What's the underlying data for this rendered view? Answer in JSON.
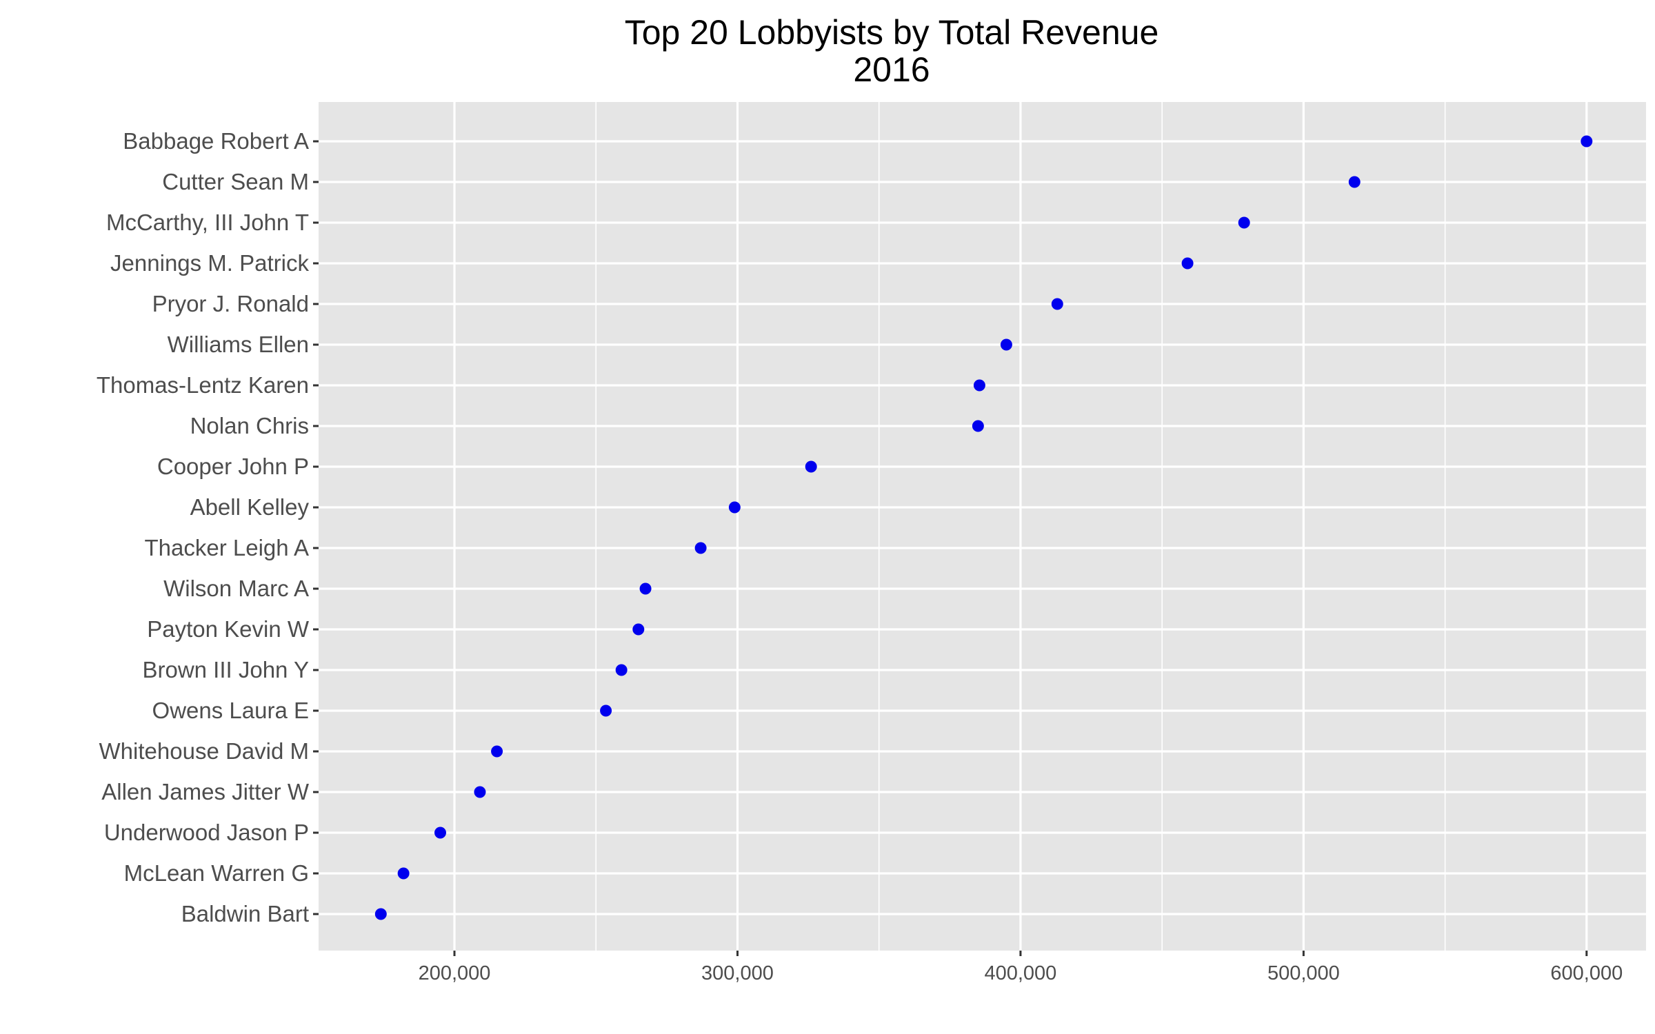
{
  "chart_data": {
    "type": "scatter",
    "title": "Top 20 Lobbyists by Total Revenue",
    "subtitle": "2016",
    "xlabel": "",
    "ylabel": "",
    "xlim": [
      152000,
      621000
    ],
    "xticks": [
      200000,
      300000,
      400000,
      500000,
      600000
    ],
    "xtick_labels": [
      "200,000",
      "300,000",
      "400,000",
      "500,000",
      "600,000"
    ],
    "grid": true,
    "point_color": "#0000ee",
    "panel_color": "#e5e5e5",
    "grid_color": "#ffffff",
    "categories": [
      "Babbage Robert A",
      "Cutter Sean M",
      "McCarthy, III John T",
      "Jennings M. Patrick",
      "Pryor J. Ronald",
      "Williams Ellen",
      "Thomas-Lentz Karen",
      "Nolan Chris",
      "Cooper John P",
      "Abell Kelley",
      "Thacker Leigh A",
      "Wilson Marc A",
      "Payton Kevin W",
      "Brown III John Y",
      "Owens Laura E",
      "Whitehouse David M",
      "Allen James Jitter W",
      "Underwood Jason P",
      "McLean Warren G",
      "Baldwin Bart"
    ],
    "values": [
      600000,
      518000,
      479000,
      459000,
      413000,
      395000,
      385500,
      385000,
      326000,
      299000,
      287000,
      267500,
      265000,
      259000,
      253500,
      215000,
      209000,
      195000,
      182000,
      174000
    ]
  }
}
